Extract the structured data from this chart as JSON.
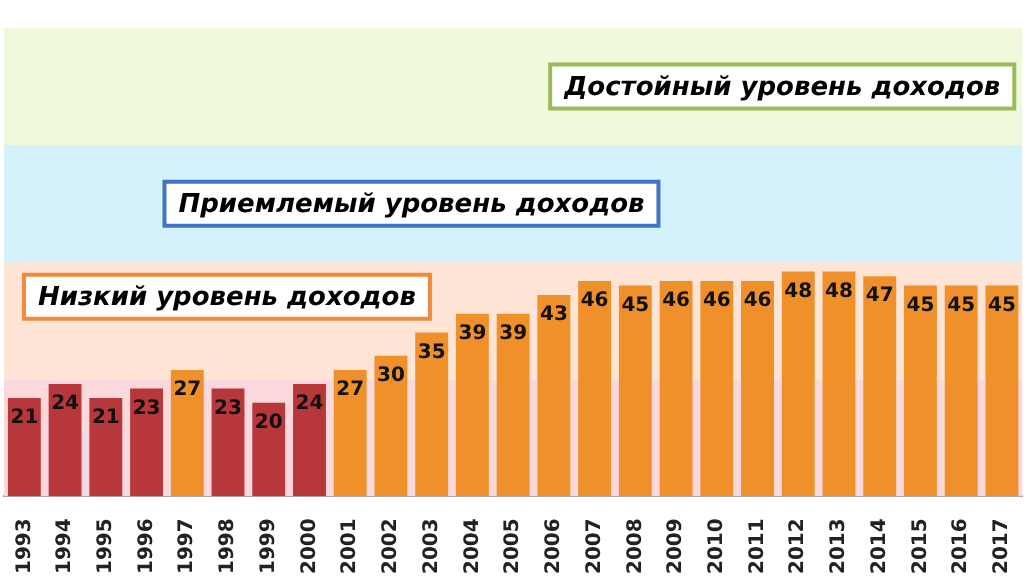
{
  "chart_data": {
    "type": "bar",
    "categories": [
      "1993",
      "1994",
      "1995",
      "1996",
      "1997",
      "1998",
      "1999",
      "2000",
      "2001",
      "2002",
      "2003",
      "2004",
      "2005",
      "2006",
      "2007",
      "2008",
      "2009",
      "2010",
      "2011",
      "2012",
      "2013",
      "2014",
      "2015",
      "2016",
      "2017"
    ],
    "values": [
      21,
      24,
      21,
      23,
      27,
      23,
      20,
      24,
      27,
      30,
      35,
      39,
      39,
      43,
      46,
      45,
      46,
      46,
      46,
      48,
      48,
      47,
      45,
      45,
      45
    ],
    "colors": [
      "#b8373a",
      "#b8373a",
      "#b8373a",
      "#b8373a",
      "#f0902a",
      "#b8373a",
      "#b8373a",
      "#b8373a",
      "#f0902a",
      "#f0902a",
      "#f0902a",
      "#f0902a",
      "#f0902a",
      "#f0902a",
      "#f0902a",
      "#f0902a",
      "#f0902a",
      "#f0902a",
      "#f0902a",
      "#f0902a",
      "#f0902a",
      "#f0902a",
      "#f0902a",
      "#f0902a",
      "#f0902a"
    ],
    "data_labels": true,
    "bands": [
      {
        "axis": "y",
        "from": 0,
        "to": 25,
        "color": "#fbd8dc"
      },
      {
        "axis": "y",
        "from": 25,
        "to": 50,
        "label": "Низкий уровень доходов",
        "color": "#fde4d4"
      },
      {
        "axis": "y",
        "from": 50,
        "to": 75,
        "label": "Приемлемый уровень доходов",
        "color": "#d4f2fc"
      },
      {
        "axis": "y",
        "from": 75,
        "to": 100,
        "label": "Достойный уровень доходов",
        "color": "#eff9dc"
      }
    ],
    "grid": false,
    "legend": false
  }
}
